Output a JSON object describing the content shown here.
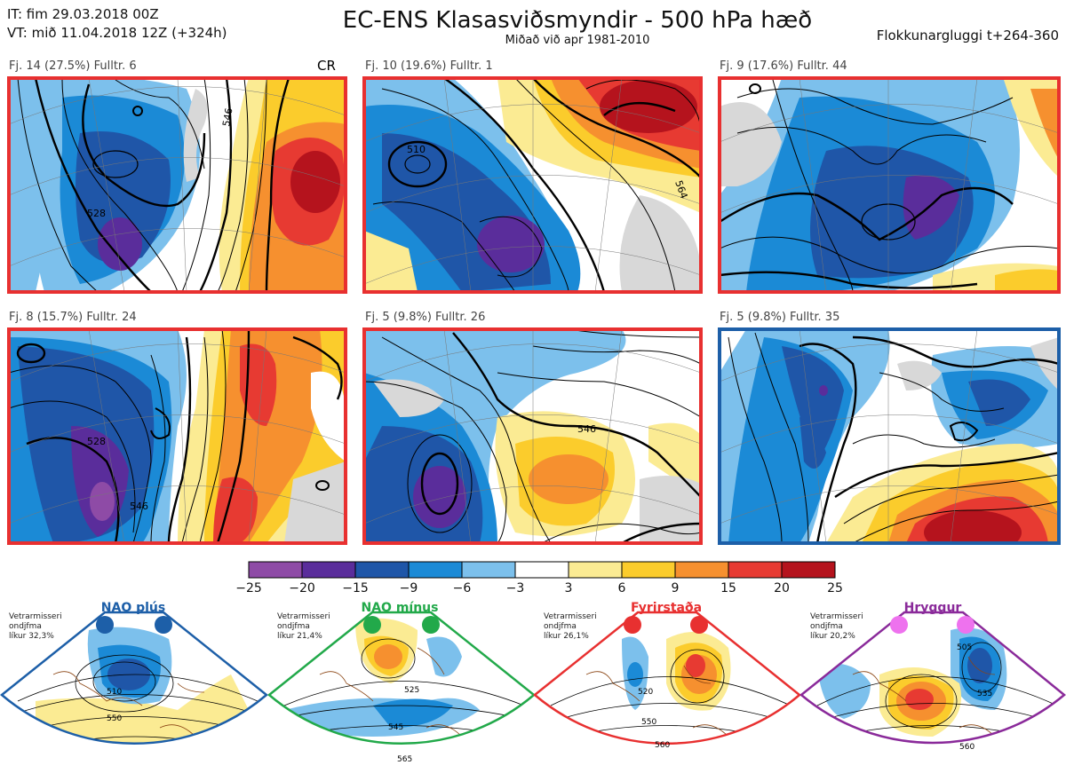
{
  "header": {
    "init_time": "IT: fim 29.03.2018 00Z",
    "valid_time": "VT: mið 11.04.2018 12Z  (+324h)",
    "title": "EC-ENS Klasasviðsmyndir - 500 hPa hæð",
    "subtitle": "Miðað við apr 1981-2010",
    "window": "Flokkunargluggi t+264-360"
  },
  "panels": [
    {
      "label": "Fj. 14 (27.5%)   Fulltr. 6",
      "regime_mark": "CR",
      "frame_color": "#e83030"
    },
    {
      "label": "Fj. 10 (19.6%)   Fulltr. 1",
      "frame_color": "#e83030"
    },
    {
      "label": "Fj. 9 (17.6%)   Fulltr. 44",
      "frame_color": "#e83030"
    },
    {
      "label": "Fj. 8 (15.7%)   Fulltr. 24",
      "frame_color": "#e83030"
    },
    {
      "label": "Fj. 5 (9.8%)   Fulltr. 26",
      "frame_color": "#e83030"
    },
    {
      "label": "Fj. 5 (9.8%)   Fulltr. 35",
      "frame_color": "#1d5fa8"
    }
  ],
  "contour_labels": [
    "528",
    "546",
    "510",
    "564",
    "528",
    "546",
    "546"
  ],
  "colorbar": {
    "ticks": [
      "−25",
      "−20",
      "−15",
      "−9",
      "−6",
      "−3",
      "3",
      "6",
      "9",
      "15",
      "20",
      "25"
    ],
    "colors": [
      "#8e4ba6",
      "#5a2d9b",
      "#1f56a8",
      "#1b8ad6",
      "#7cc0ec",
      "#ffffff",
      "#fbeb93",
      "#fbcc2c",
      "#f6902f",
      "#e73a32",
      "#b5131d"
    ]
  },
  "regimes": [
    {
      "name": "NAO plús",
      "note": [
        "Vetrarmisseri",
        "ondjfma",
        "líkur 32,3%"
      ],
      "color": "#1d5fa8",
      "contours": [
        "510",
        "550"
      ]
    },
    {
      "name": "NAO mínus",
      "note": [
        "Vetrarmisseri",
        "ondjfma",
        "líkur 21,4%"
      ],
      "color": "#22a94a",
      "contours": [
        "525",
        "545",
        "565"
      ]
    },
    {
      "name": "Fyrirstaða",
      "note": [
        "Vetrarmisseri",
        "ondjfma",
        "líkur 26,1%"
      ],
      "color": "#e83030",
      "contours": [
        "520",
        "550",
        "560"
      ]
    },
    {
      "name": "Hryggur",
      "note": [
        "Vetrarmisseri",
        "ondjfma",
        "líkur 20,2%"
      ],
      "color": "#8a2a9a",
      "contours": [
        "505",
        "535",
        "560"
      ]
    }
  ]
}
